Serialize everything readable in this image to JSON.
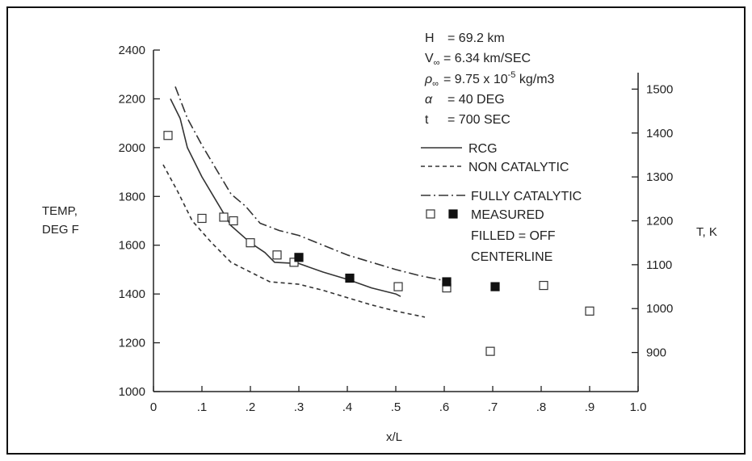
{
  "chart_data": {
    "type": "line",
    "title": "",
    "xlabel": "x/L",
    "ylabel": "TEMP, DEG F",
    "ylabel_lines": [
      "TEMP,",
      "DEG F"
    ],
    "y2label": "T, K",
    "xlim": [
      0,
      1.0
    ],
    "ylim": [
      1000,
      2400
    ],
    "y2lim": [
      811,
      1589
    ],
    "x_ticks": [
      0,
      0.1,
      0.2,
      0.3,
      0.4,
      0.5,
      0.6,
      0.7,
      0.8,
      0.9,
      1.0
    ],
    "x_tick_labels": [
      "0",
      ".1",
      ".2",
      ".3",
      ".4",
      ".5",
      ".6",
      ".7",
      ".8",
      ".9",
      "1.0"
    ],
    "y_ticks": [
      1000,
      1200,
      1400,
      1600,
      1800,
      2000,
      2200,
      2400
    ],
    "y_tick_labels": [
      "1000",
      "1200",
      "1400",
      "1600",
      "1800",
      "2000",
      "2200",
      "2400"
    ],
    "y2_ticks": [
      900,
      1000,
      1100,
      1200,
      1300,
      1400,
      1500
    ],
    "y2_tick_labels": [
      "900",
      "1000",
      "1100",
      "1200",
      "1300",
      "1400",
      "1500"
    ],
    "grid": false,
    "conditions": {
      "H": "69.2 km",
      "V": "6.34 km/SEC",
      "rho": "9.75 x 10",
      "rho_exp": "-5",
      "rho_unit": " kg/m3",
      "alpha": "40 DEG",
      "t": "700 SEC"
    },
    "condition_symbols": {
      "H": "H",
      "V": "V",
      "V_sub": "∞",
      "rho": "ρ",
      "rho_sub": "∞",
      "alpha": "α",
      "t": "t"
    },
    "legend_labels": {
      "rcg": "RCG",
      "non_catalytic": "NON CATALYTIC",
      "fully_catalytic": "FULLY CATALYTIC",
      "measured": "MEASURED",
      "filled_1": "FILLED = OFF",
      "filled_2": "CENTERLINE"
    },
    "series": [
      {
        "name": "RCG",
        "style": "solid",
        "x": [
          0.035,
          0.055,
          0.07,
          0.1,
          0.13,
          0.16,
          0.2,
          0.23,
          0.25,
          0.3,
          0.35,
          0.4,
          0.45,
          0.5,
          0.51
        ],
        "y": [
          2200,
          2120,
          2000,
          1880,
          1780,
          1680,
          1610,
          1570,
          1530,
          1525,
          1490,
          1460,
          1425,
          1400,
          1390
        ]
      },
      {
        "name": "NON CATALYTIC",
        "style": "dashed",
        "x": [
          0.02,
          0.05,
          0.08,
          0.12,
          0.16,
          0.2,
          0.24,
          0.3,
          0.35,
          0.4,
          0.45,
          0.5,
          0.56
        ],
        "y": [
          1930,
          1820,
          1700,
          1610,
          1530,
          1490,
          1450,
          1440,
          1415,
          1385,
          1355,
          1330,
          1305
        ]
      },
      {
        "name": "FULLY CATALYTIC",
        "style": "dashdot",
        "x": [
          0.045,
          0.07,
          0.1,
          0.13,
          0.16,
          0.19,
          0.22,
          0.26,
          0.3,
          0.35,
          0.4,
          0.45,
          0.5,
          0.55,
          0.6
        ],
        "y": [
          2250,
          2120,
          2010,
          1910,
          1810,
          1760,
          1690,
          1660,
          1640,
          1600,
          1560,
          1530,
          1500,
          1475,
          1455
        ]
      }
    ],
    "measured": {
      "open": {
        "x": [
          0.03,
          0.1,
          0.145,
          0.165,
          0.2,
          0.255,
          0.29,
          0.505,
          0.605,
          0.695,
          0.805,
          0.9
        ],
        "y": [
          2050,
          1710,
          1715,
          1700,
          1610,
          1560,
          1530,
          1430,
          1425,
          1165,
          1435,
          1330
        ]
      },
      "filled": {
        "x": [
          0.3,
          0.405,
          0.605,
          0.705
        ],
        "y": [
          1550,
          1465,
          1450,
          1430
        ]
      }
    },
    "legend_placement": "top-right inside plot"
  }
}
